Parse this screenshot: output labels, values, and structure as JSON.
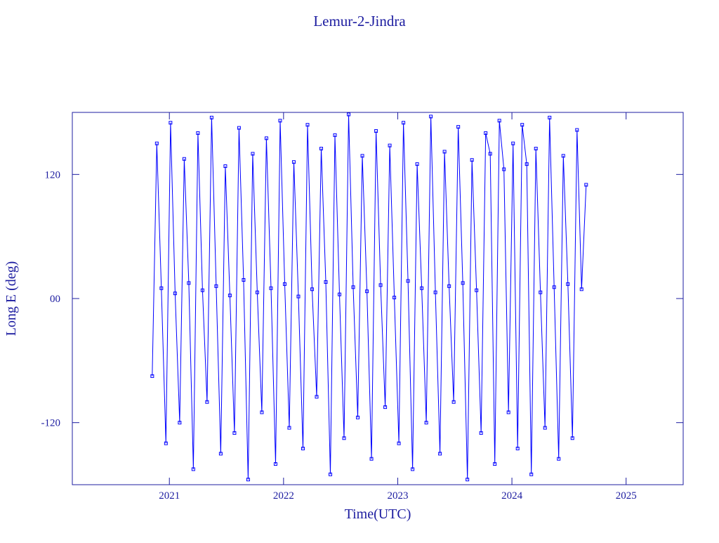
{
  "chart_data": {
    "type": "line",
    "title": "Lemur-2-Jindra",
    "x_label": "Time(UTC)",
    "y_label": "Long E (deg)",
    "x": [
      2020.85,
      2020.89,
      2020.93,
      2020.97,
      2021.01,
      2021.05,
      2021.09,
      2021.13,
      2021.17,
      2021.21,
      2021.25,
      2021.29,
      2021.33,
      2021.37,
      2021.41,
      2021.45,
      2021.49,
      2021.53,
      2021.57,
      2021.61,
      2021.65,
      2021.69,
      2021.73,
      2021.77,
      2021.81,
      2021.85,
      2021.89,
      2021.93,
      2021.97,
      2022.01,
      2022.05,
      2022.09,
      2022.13,
      2022.17,
      2022.21,
      2022.25,
      2022.29,
      2022.33,
      2022.37,
      2022.41,
      2022.45,
      2022.49,
      2022.53,
      2022.57,
      2022.61,
      2022.65,
      2022.69,
      2022.73,
      2022.77,
      2022.81,
      2022.85,
      2022.89,
      2022.93,
      2022.97,
      2023.01,
      2023.05,
      2023.09,
      2023.13,
      2023.17,
      2023.21,
      2023.25,
      2023.29,
      2023.33,
      2023.37,
      2023.41,
      2023.45,
      2023.49,
      2023.53,
      2023.57,
      2023.61,
      2023.65,
      2023.69,
      2023.73,
      2023.77,
      2023.81,
      2023.85,
      2023.89,
      2023.93,
      2023.97,
      2024.01,
      2024.05,
      2024.09,
      2024.13,
      2024.17,
      2024.21,
      2024.25,
      2024.29,
      2024.33,
      2024.37,
      2024.41,
      2024.45,
      2024.49,
      2024.53,
      2024.57,
      2024.61,
      2024.65
    ],
    "series": [
      {
        "color": "#0000ff",
        "values": [
          -75,
          150,
          10,
          -140,
          170,
          5,
          -120,
          135,
          15,
          -165,
          160,
          8,
          -100,
          175,
          12,
          -150,
          128,
          3,
          -130,
          165,
          18,
          -175,
          140,
          6,
          -110,
          155,
          10,
          -160,
          172,
          14,
          -125,
          132,
          2,
          -145,
          168,
          9,
          -95,
          145,
          16,
          -170,
          158,
          4,
          -135,
          178,
          11,
          -115,
          138,
          7,
          -155,
          162,
          13,
          -105,
          148,
          1,
          -140,
          170,
          17,
          -165,
          130,
          10,
          -120,
          176,
          6,
          -150,
          142,
          12,
          -100,
          166,
          15,
          -175,
          134,
          8,
          -130,
          160,
          140,
          -160,
          172,
          125,
          -110,
          150,
          -145,
          168,
          130,
          -170,
          145,
          6,
          -125,
          175,
          11,
          -155,
          138,
          14,
          -135,
          163,
          9,
          110
        ]
      }
    ],
    "xlim": [
      2020.15,
      2025.5
    ],
    "xticks": [
      2021,
      2022,
      2023,
      2024,
      2025
    ],
    "ylim": [
      -180,
      180
    ],
    "yticks": [
      -120,
      {
        "value": 0,
        "label": "00"
      },
      120
    ],
    "axis_color": "#1c1ca0"
  }
}
